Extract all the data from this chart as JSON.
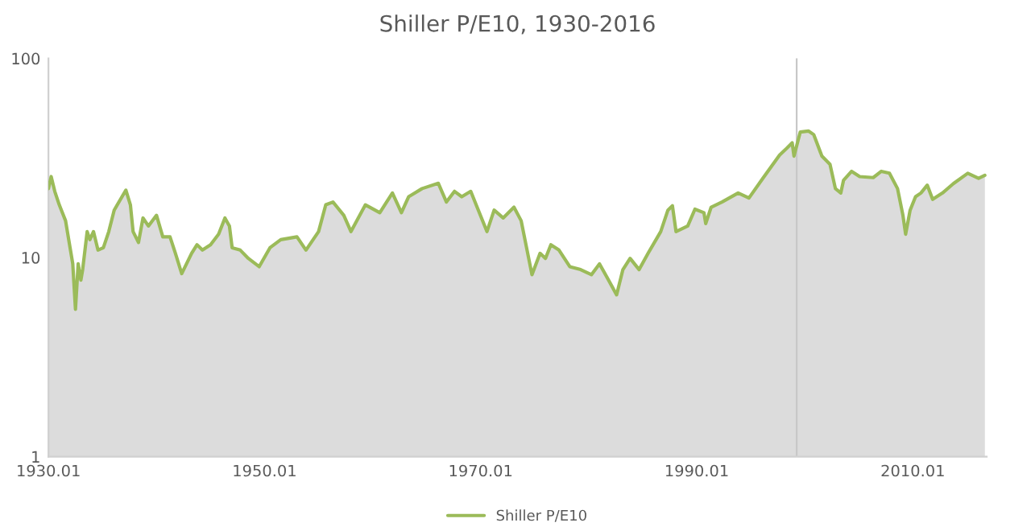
{
  "chart_data": {
    "type": "area",
    "title": "Shiller P/E10, 1930-2016",
    "x": [
      "1930-01",
      "1930-04",
      "1930-08",
      "1931-01",
      "1931-08",
      "1932-01",
      "1932-04",
      "1932-07",
      "1932-10",
      "1933-01",
      "1933-03",
      "1933-08",
      "1933-11",
      "1934-03",
      "1934-08",
      "1935-02",
      "1935-08",
      "1936-02",
      "1936-09",
      "1937-03",
      "1937-08",
      "1937-11",
      "1938-05",
      "1938-10",
      "1939-04",
      "1940-01",
      "1940-08",
      "1941-04",
      "1941-10",
      "1942-05",
      "1943-04",
      "1943-10",
      "1944-04",
      "1945-01",
      "1945-10",
      "1946-05",
      "1946-10",
      "1947-01",
      "1947-10",
      "1948-07",
      "1949-07",
      "1950-07",
      "1951-07",
      "1953-01",
      "1953-11",
      "1955-01",
      "1955-09",
      "1956-05",
      "1957-05",
      "1958-01",
      "1959-05",
      "1960-09",
      "1961-11",
      "1962-09",
      "1963-05",
      "1964-08",
      "1966-02",
      "1966-11",
      "1967-08",
      "1968-04",
      "1969-02",
      "1970-08",
      "1971-04",
      "1972-02",
      "1973-02",
      "1973-10",
      "1974-10",
      "1975-07",
      "1976-01",
      "1976-07",
      "1977-04",
      "1978-04",
      "1979-04",
      "1980-04",
      "1981-01",
      "1981-09",
      "1982-08",
      "1983-03",
      "1983-11",
      "1984-09",
      "1985-07",
      "1986-09",
      "1987-05",
      "1987-10",
      "1988-02",
      "1989-03",
      "1989-11",
      "1990-09",
      "1990-11",
      "1991-05",
      "1992-05",
      "1993-11",
      "1994-11",
      "1996-03",
      "1997-09",
      "1998-05",
      "1998-11",
      "1999-01",
      "1999-08",
      "2000-05",
      "2000-11",
      "2001-08",
      "2002-05",
      "2002-11",
      "2003-05",
      "2003-08",
      "2004-05",
      "2005-02",
      "2006-05",
      "2007-02",
      "2007-11",
      "2008-08",
      "2009-02",
      "2009-05",
      "2009-10",
      "2010-04",
      "2010-10",
      "2011-05",
      "2011-11",
      "2012-10",
      "2013-10",
      "2015-02",
      "2016-02",
      "2016-09"
    ],
    "series": [
      {
        "name": "Shiller P/E10",
        "color": "#9bbb59",
        "values": [
          22.2,
          25.5,
          21.5,
          18.4,
          15.3,
          11.2,
          9.3,
          5.5,
          9.3,
          7.7,
          8.7,
          13.5,
          12.3,
          13.5,
          10.9,
          11.2,
          13.5,
          17.3,
          19.6,
          21.8,
          18.4,
          13.5,
          11.9,
          15.8,
          14.4,
          16.3,
          12.7,
          12.7,
          10.5,
          8.3,
          10.5,
          11.6,
          10.9,
          11.6,
          13.1,
          15.8,
          14.4,
          11.2,
          10.9,
          9.9,
          9.0,
          11.2,
          12.3,
          12.7,
          10.9,
          13.5,
          18.4,
          19.0,
          16.3,
          13.5,
          18.4,
          16.8,
          21.1,
          16.8,
          20.2,
          22.2,
          23.6,
          19.0,
          21.5,
          20.2,
          21.5,
          13.5,
          17.3,
          15.8,
          17.9,
          15.3,
          8.2,
          10.5,
          9.9,
          11.6,
          10.9,
          9.0,
          8.7,
          8.2,
          9.3,
          8.0,
          6.5,
          8.7,
          9.9,
          8.7,
          10.5,
          13.5,
          17.3,
          18.2,
          13.5,
          14.4,
          17.5,
          16.8,
          14.8,
          17.9,
          19.0,
          21.1,
          19.9,
          25.2,
          32.7,
          35.4,
          37.7,
          32.3,
          42.7,
          43.2,
          41.4,
          32.3,
          29.4,
          22.2,
          21.1,
          24.4,
          27.1,
          25.5,
          25.2,
          27.1,
          26.5,
          22.2,
          16.3,
          13.1,
          17.3,
          20.2,
          21.1,
          23.1,
          19.6,
          21.1,
          23.5,
          26.5,
          25.0,
          25.9
        ]
      }
    ],
    "log": true,
    "ylim": [
      1,
      100
    ],
    "yticks": [
      1,
      10,
      100
    ],
    "xlim": [
      "1930-01",
      "2016-11"
    ],
    "xticks": [
      {
        "value": "1930-01",
        "label": "1930.01"
      },
      {
        "value": "1950-01",
        "label": "1950.01"
      },
      {
        "value": "1970-01",
        "label": "1970.01"
      },
      {
        "value": "1990-01",
        "label": "1990.01"
      },
      {
        "value": "2010-01",
        "label": "2010.01"
      }
    ],
    "ref_lines": [
      {
        "axis": "x",
        "value": "1999-04",
        "color": "#c8c8c8"
      }
    ],
    "legend": "bottom"
  }
}
